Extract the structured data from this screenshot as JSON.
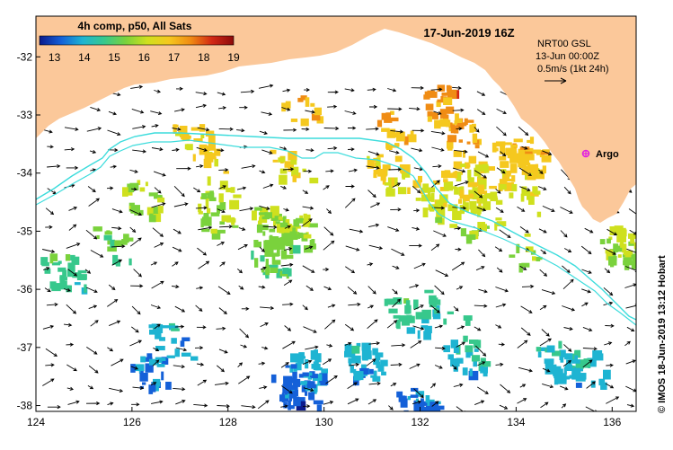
{
  "map": {
    "date_title": "17-Jun-2019 16Z",
    "colorbar": {
      "title": "4h comp, p50, All Sats",
      "tick_labels": [
        "13",
        "14",
        "15",
        "16",
        "17",
        "18",
        "19"
      ],
      "min": 12.5,
      "max": 19,
      "colors": [
        "#0a1a8c",
        "#1460d8",
        "#1eb4d2",
        "#37c88c",
        "#7ad23c",
        "#cfe01e",
        "#f5c81e",
        "#f08c14",
        "#d22814",
        "#8c0a0a"
      ]
    },
    "info_lines": [
      "NRT00 GSL",
      "13-Jun 00:00Z",
      "0.5m/s (1kt 24h)"
    ],
    "argo_label": "Argo",
    "credit": "© IMOS 18-Jun-2019 13:12 Hobart",
    "x_ticks": [
      "124",
      "126",
      "128",
      "130",
      "132",
      "134",
      "136"
    ],
    "y_ticks": [
      "-32",
      "-33",
      "-34",
      "-35",
      "-36",
      "-37",
      "-38"
    ],
    "lon_range": [
      124,
      136.5
    ],
    "lat_range": [
      -38.1,
      -31.3
    ],
    "land_color": "#fbc89a",
    "contour_color": "#3cdcdc",
    "argo_color": "#e020e0"
  }
}
